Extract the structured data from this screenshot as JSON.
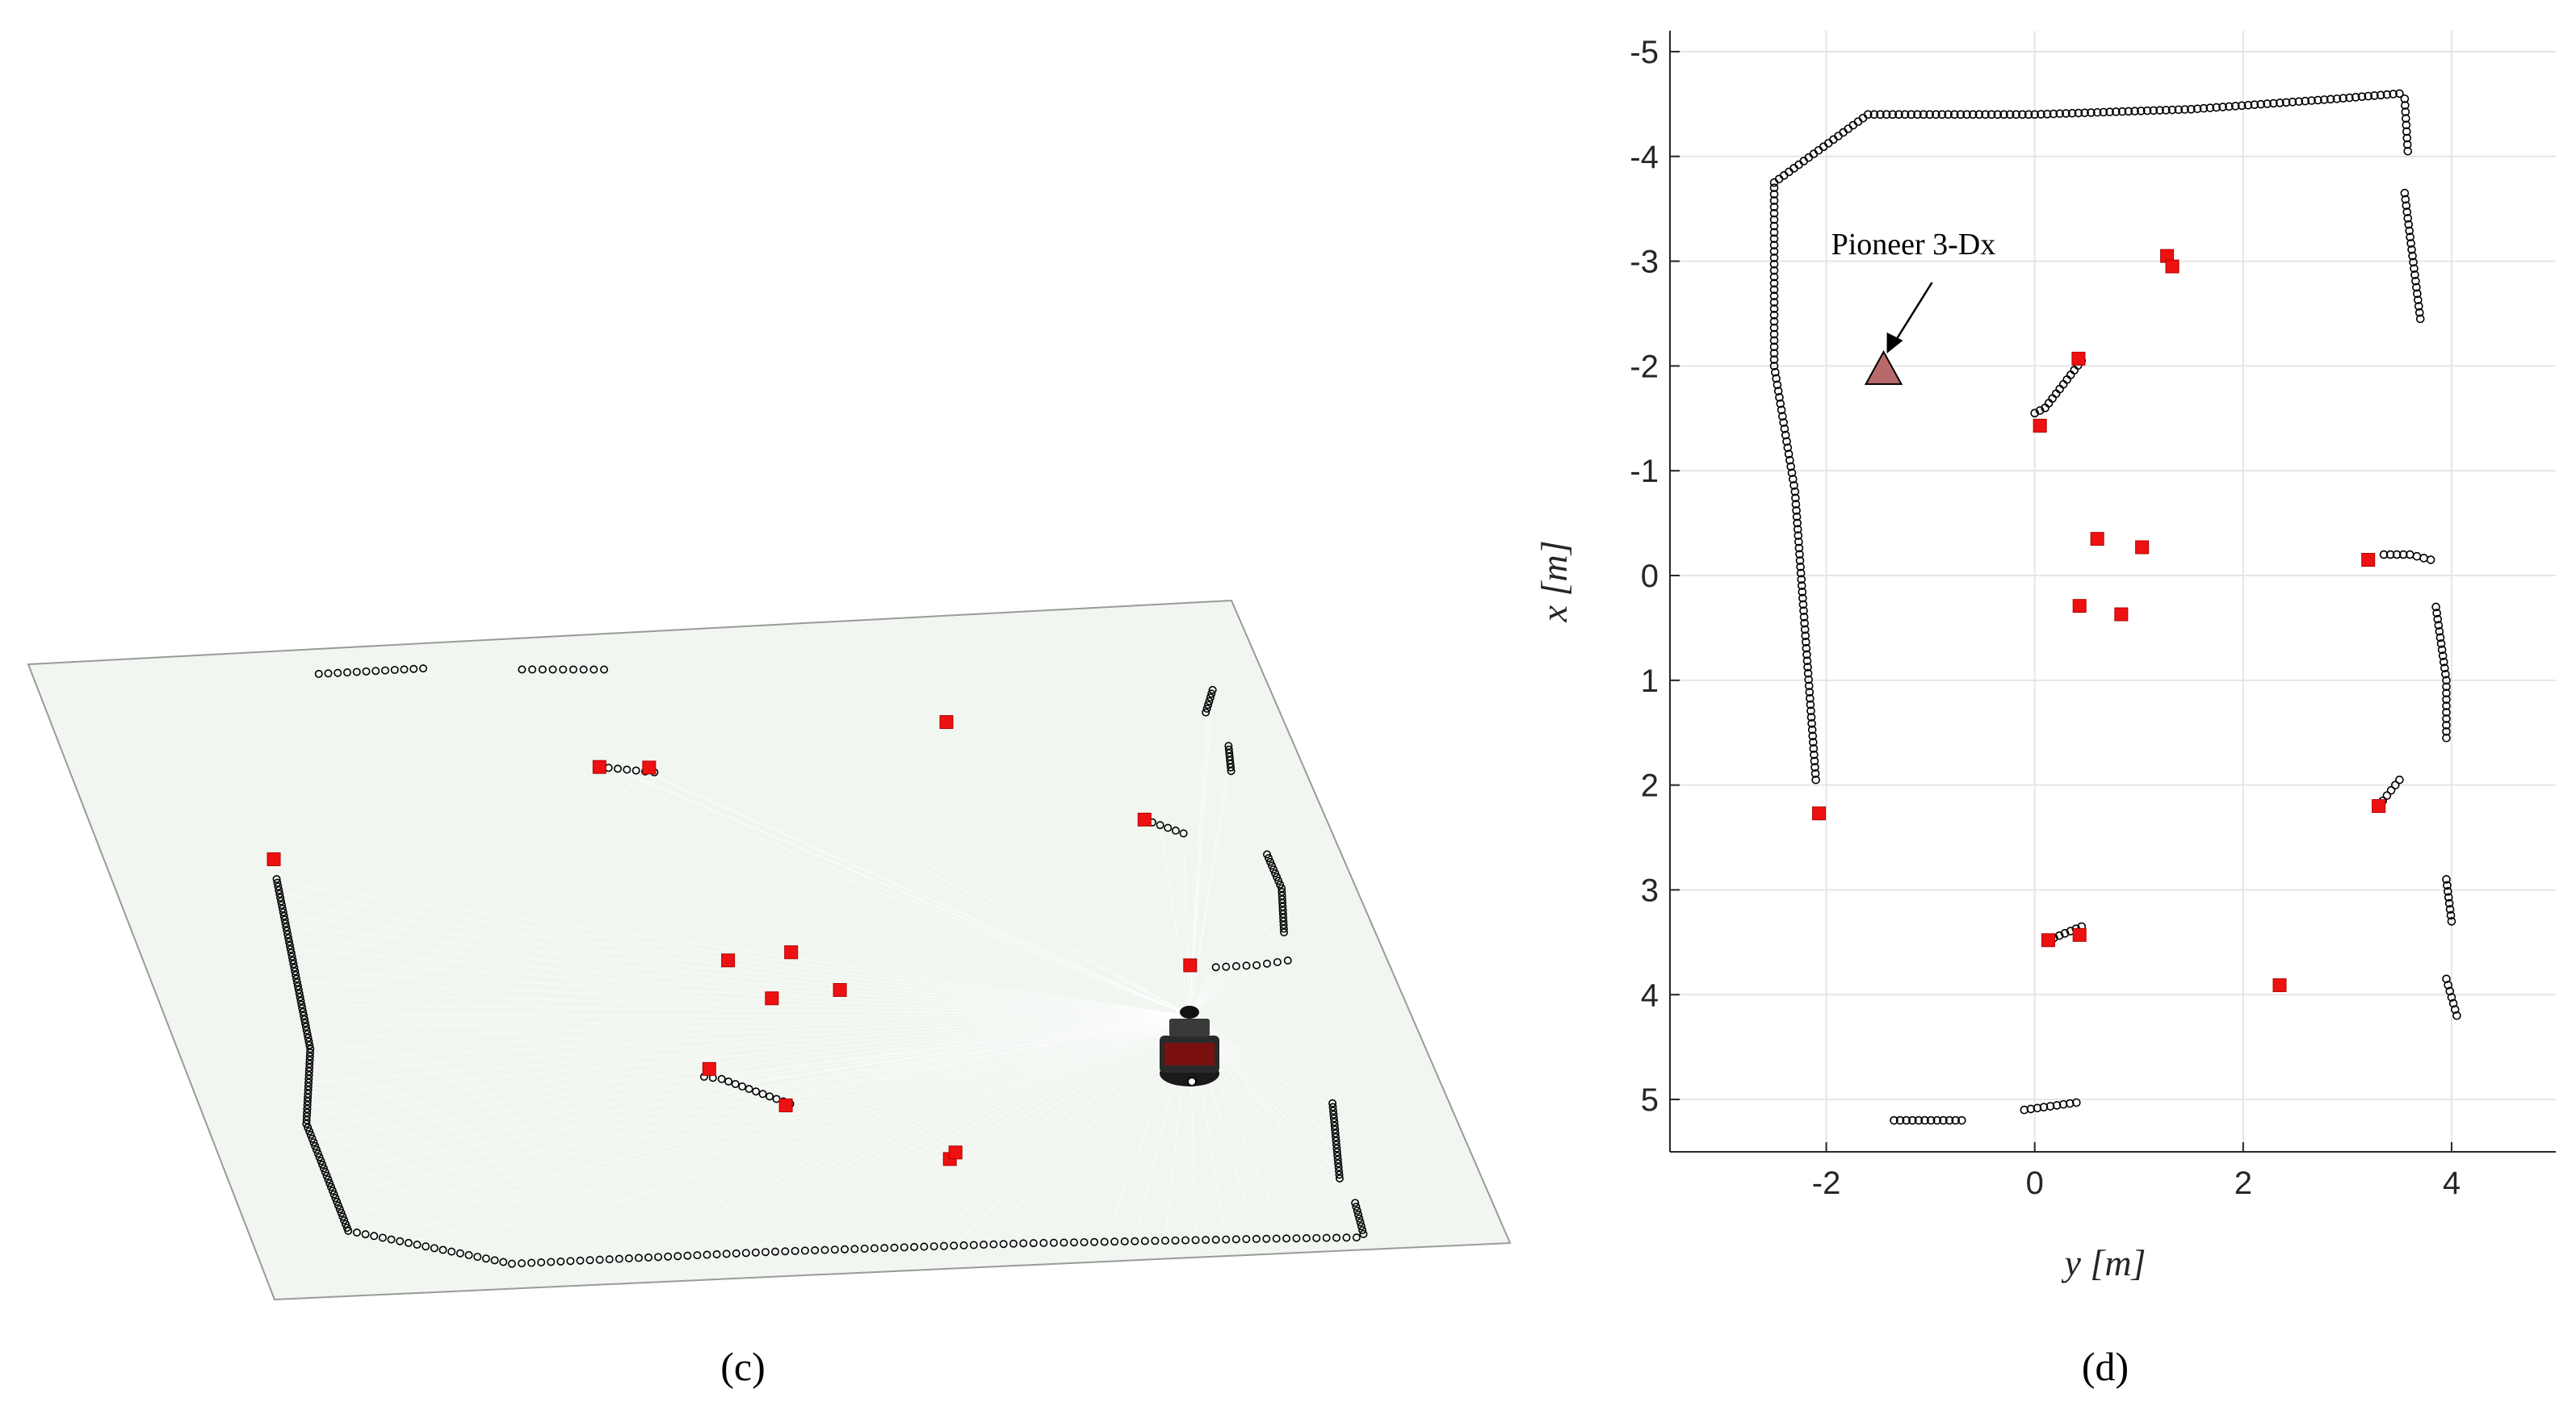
{
  "panels": {
    "c_label": "(c)",
    "d_label": "(d)"
  },
  "colors": {
    "landmark": "#ee1111",
    "scan_points": "#000000",
    "robot_marker": "#b86a6a",
    "floor_plane": "#f1f6f1"
  },
  "chart_data": [
    {
      "type": "scatter",
      "panel": "c",
      "title": "",
      "description_3d": "3D perspective view of laser scan of the same environment with robot model",
      "series": [
        {
          "name": "",
          "marker": "circle"
        },
        {
          "name": "",
          "marker": "square"
        }
      ],
      "grid": false
    },
    {
      "type": "scatter",
      "panel": "d",
      "title": "",
      "xlabel": "y [m]",
      "ylabel": "x [m]",
      "xlim": [
        -3.5,
        5
      ],
      "ylim": [
        5.5,
        -5.2
      ],
      "y_reversed": true,
      "xticks": [
        -2,
        0,
        2,
        4
      ],
      "yticks": [
        -5,
        -4,
        -3,
        -2,
        -1,
        0,
        1,
        2,
        3,
        4,
        5
      ],
      "grid": true,
      "annotation": {
        "text": "Pioneer 3-Dx",
        "arrow_to": [
          -1.45,
          -1.95
        ]
      },
      "robot": {
        "y": -1.45,
        "x": -1.95,
        "marker": "triangle"
      },
      "landmarks": [
        {
          "y": 1.27,
          "x": -3.05
        },
        {
          "y": 1.32,
          "x": -2.95
        },
        {
          "y": 0.42,
          "x": -2.07
        },
        {
          "y": 0.05,
          "x": -1.43
        },
        {
          "y": 0.6,
          "x": -0.35
        },
        {
          "y": 1.03,
          "x": -0.27
        },
        {
          "y": 3.2,
          "x": -0.15
        },
        {
          "y": 0.43,
          "x": 0.29
        },
        {
          "y": 0.83,
          "x": 0.37
        },
        {
          "y": -2.07,
          "x": 2.27
        },
        {
          "y": 3.3,
          "x": 2.2
        },
        {
          "y": 0.13,
          "x": 3.48
        },
        {
          "y": 0.43,
          "x": 3.43
        },
        {
          "y": 2.35,
          "x": 3.91
        }
      ],
      "walls": [
        {
          "y": [
            -2.5,
            -2.5,
            -2.3,
            -2.1
          ],
          "x": [
            -3.7,
            -2.0,
            -0.8,
            1.95
          ]
        },
        {
          "y": [
            -2.5,
            -1.6,
            0.0,
            1.5,
            2.9,
            3.5
          ],
          "x": [
            -3.75,
            -4.4,
            -4.4,
            -4.45,
            -4.55,
            -4.6
          ]
        },
        {
          "y": [
            3.55,
            3.58
          ],
          "x": [
            -4.55,
            -4.05
          ]
        },
        {
          "y": [
            3.55,
            3.7
          ],
          "x": [
            -3.65,
            -2.45
          ]
        },
        {
          "y": [
            0.0,
            0.1,
            0.45
          ],
          "x": [
            -1.55,
            -1.6,
            -2.05
          ]
        },
        {
          "y": [
            3.85,
            3.95,
            3.95
          ],
          "x": [
            0.3,
            1.0,
            1.55
          ]
        },
        {
          "y": [
            3.3,
            3.5
          ],
          "x": [
            2.2,
            1.95
          ]
        },
        {
          "y": [
            3.95,
            4.0
          ],
          "x": [
            2.9,
            3.3
          ]
        },
        {
          "y": [
            3.95,
            4.05
          ],
          "x": [
            3.85,
            4.2
          ]
        },
        {
          "y": [
            0.13,
            0.45
          ],
          "x": [
            3.48,
            3.35
          ]
        },
        {
          "y": [
            -1.35,
            -0.7
          ],
          "x": [
            5.2,
            5.2
          ]
        },
        {
          "y": [
            -0.1,
            0.4
          ],
          "x": [
            5.1,
            5.03
          ]
        },
        {
          "y": [
            3.35,
            3.6,
            3.8
          ],
          "x": [
            -0.2,
            -0.2,
            -0.15
          ]
        }
      ]
    }
  ]
}
